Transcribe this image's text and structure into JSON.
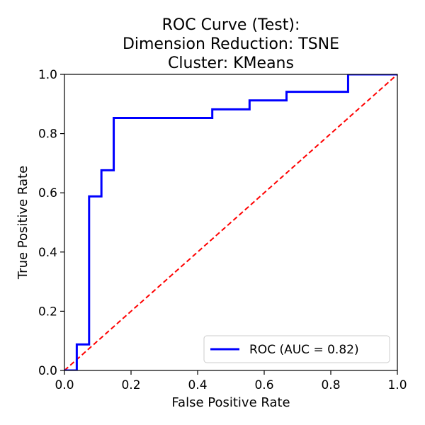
{
  "chart_data": {
    "type": "line",
    "title_lines": [
      "ROC Curve (Test):",
      "Dimension Reduction: TSNE",
      "Cluster: KMeans"
    ],
    "xlabel": "False Positive Rate",
    "ylabel": "True Positive Rate",
    "xlim": [
      0.0,
      1.0
    ],
    "ylim": [
      0.0,
      1.0
    ],
    "x_ticks": [
      0.0,
      0.2,
      0.4,
      0.6,
      0.8,
      1.0
    ],
    "y_ticks": [
      0.0,
      0.2,
      0.4,
      0.6,
      0.8,
      1.0
    ],
    "x_tick_labels": [
      "0.0",
      "0.2",
      "0.4",
      "0.6",
      "0.8",
      "1.0"
    ],
    "y_tick_labels": [
      "0.0",
      "0.2",
      "0.4",
      "0.6",
      "0.8",
      "1.0"
    ],
    "grid": false,
    "legend_placement": "lower-right",
    "series": [
      {
        "name": "ROC (AUC = 0.82)",
        "color": "#0000ff",
        "style": "solid-step",
        "x": [
          0.0,
          0.037,
          0.037,
          0.074,
          0.074,
          0.074,
          0.111,
          0.111,
          0.148,
          0.148,
          0.444,
          0.444,
          0.556,
          0.556,
          0.667,
          0.667,
          0.852,
          0.852,
          1.0
        ],
        "y": [
          0.0,
          0.0,
          0.088,
          0.088,
          0.588,
          0.588,
          0.588,
          0.676,
          0.676,
          0.853,
          0.853,
          0.882,
          0.882,
          0.912,
          0.912,
          0.941,
          0.941,
          1.0,
          1.0
        ]
      },
      {
        "name": "",
        "color": "#ff0000",
        "style": "dashed",
        "x": [
          0.0,
          1.0
        ],
        "y": [
          0.0,
          1.0
        ]
      }
    ]
  }
}
